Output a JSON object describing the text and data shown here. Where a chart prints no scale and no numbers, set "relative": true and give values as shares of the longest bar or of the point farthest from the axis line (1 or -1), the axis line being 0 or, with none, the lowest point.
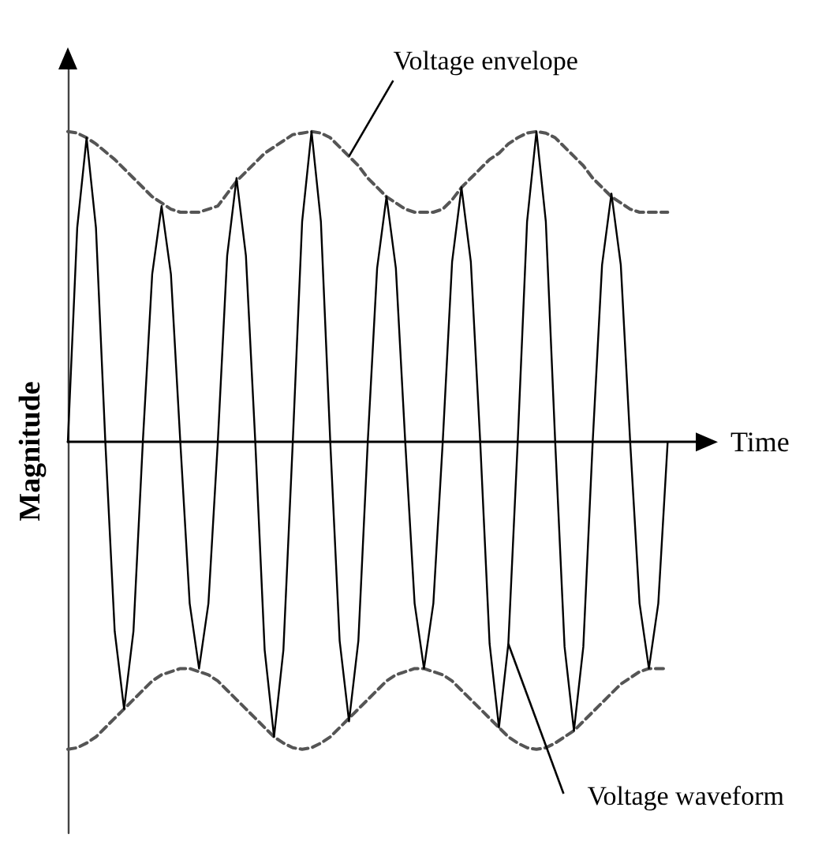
{
  "chart_data": {
    "type": "line",
    "relative": true,
    "xlabel": "Time",
    "ylabel": "Magnitude",
    "marker": "none",
    "categories": [
      null,
      null,
      null,
      null,
      null,
      null,
      null,
      null,
      null,
      null,
      null,
      null,
      null,
      null,
      null,
      null,
      null,
      null,
      null,
      null,
      null,
      null,
      null,
      null,
      null,
      null,
      null,
      null,
      null,
      null,
      null,
      null,
      null,
      null,
      null,
      null,
      null,
      null,
      null,
      null,
      null,
      null,
      null,
      null,
      null,
      null,
      null,
      null,
      null,
      null,
      null,
      null,
      null,
      null,
      null,
      null,
      null,
      null,
      null,
      null,
      null,
      null,
      null,
      null,
      null
    ],
    "series": [
      {
        "name": "Voltage envelope",
        "color": "#555555",
        "line_style": "dashed",
        "values": [
          1,
          0.995,
          0.98,
          0.96,
          0.935,
          0.91,
          0.88,
          0.85,
          0.82,
          0.79,
          0.77,
          0.75,
          0.74,
          0.74,
          0.74,
          0.75,
          0.76,
          0.8,
          0.84,
          0.87,
          0.9,
          0.93,
          0.95,
          0.97,
          0.99,
          0.995,
          1,
          0.995,
          0.98,
          0.95,
          0.92,
          0.89,
          0.85,
          0.82,
          0.79,
          0.77,
          0.75,
          0.74,
          0.74,
          0.74,
          0.75,
          0.78,
          0.82,
          0.85,
          0.88,
          0.91,
          0.93,
          0.96,
          0.98,
          0.995,
          1,
          0.995,
          0.98,
          0.95,
          0.92,
          0.89,
          0.85,
          0.82,
          0.79,
          0.77,
          0.75,
          0.74,
          0.74,
          0.74,
          0.74
        ]
      },
      {
        "color": "#555555",
        "line_style": "dashed",
        "values": [
          -0.99,
          -0.985,
          -0.97,
          -0.95,
          -0.92,
          -0.89,
          -0.86,
          -0.83,
          -0.8,
          -0.77,
          -0.75,
          -0.74,
          -0.73,
          -0.73,
          -0.74,
          -0.75,
          -0.77,
          -0.8,
          -0.83,
          -0.86,
          -0.89,
          -0.92,
          -0.95,
          -0.97,
          -0.985,
          -0.99,
          -0.985,
          -0.97,
          -0.95,
          -0.92,
          -0.89,
          -0.86,
          -0.83,
          -0.8,
          -0.77,
          -0.75,
          -0.74,
          -0.73,
          -0.73,
          -0.74,
          -0.75,
          -0.77,
          -0.8,
          -0.83,
          -0.86,
          -0.89,
          -0.92,
          -0.95,
          -0.97,
          -0.985,
          -0.99,
          -0.985,
          -0.97,
          -0.95,
          -0.93,
          -0.9,
          -0.87,
          -0.84,
          -0.81,
          -0.78,
          -0.76,
          -0.74,
          -0.73,
          -0.73,
          -0.73
        ]
      },
      {
        "name": "Voltage waveform",
        "color": "#000000",
        "line_style": "solid",
        "values": [
          0,
          0.69,
          0.98,
          0.69,
          0,
          -0.61,
          -0.86,
          -0.61,
          0,
          0.54,
          0.76,
          0.54,
          0,
          -0.52,
          -0.73,
          -0.52,
          0,
          0.6,
          0.85,
          0.6,
          0,
          -0.67,
          -0.95,
          -0.67,
          0,
          0.71,
          1,
          0.71,
          0,
          -0.64,
          -0.9,
          -0.64,
          0,
          0.56,
          0.79,
          0.56,
          0,
          -0.52,
          -0.73,
          -0.52,
          0,
          0.58,
          0.82,
          0.58,
          0,
          -0.65,
          -0.92,
          -0.65,
          0,
          0.71,
          1,
          0.71,
          0,
          -0.66,
          -0.93,
          -0.66,
          0,
          0.57,
          0.8,
          0.57,
          0,
          -0.52,
          -0.73,
          -0.52,
          0
        ]
      }
    ]
  }
}
